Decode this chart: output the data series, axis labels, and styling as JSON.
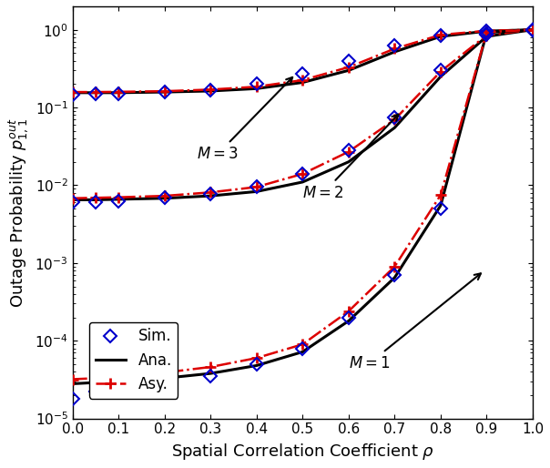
{
  "title": "",
  "xlabel": "Spatial Correlation Coefficient $\\rho$",
  "ylabel": "Outage Probability $p_{1,1}^{out}$",
  "xlim": [
    0,
    1.0
  ],
  "rho": [
    0.0,
    0.05,
    0.1,
    0.2,
    0.3,
    0.4,
    0.5,
    0.6,
    0.7,
    0.8,
    0.9,
    1.0
  ],
  "M3_ana": [
    0.155,
    0.155,
    0.155,
    0.158,
    0.163,
    0.175,
    0.21,
    0.3,
    0.52,
    0.82,
    0.96,
    1.0
  ],
  "M3_asy": [
    0.158,
    0.158,
    0.159,
    0.162,
    0.17,
    0.185,
    0.225,
    0.33,
    0.57,
    0.86,
    0.97,
    1.0
  ],
  "M3_sim": [
    0.147,
    0.15,
    0.152,
    0.158,
    0.168,
    0.2,
    0.27,
    0.4,
    0.62,
    0.85,
    0.97,
    1.0
  ],
  "M2_ana": [
    0.0065,
    0.0065,
    0.0066,
    0.0068,
    0.0073,
    0.0083,
    0.011,
    0.02,
    0.055,
    0.25,
    0.82,
    1.0
  ],
  "M2_asy": [
    0.0068,
    0.0069,
    0.007,
    0.0073,
    0.0081,
    0.0095,
    0.014,
    0.027,
    0.07,
    0.29,
    0.85,
    1.0
  ],
  "M2_sim": [
    0.006,
    0.006,
    0.0063,
    0.007,
    0.0078,
    0.0095,
    0.014,
    0.028,
    0.075,
    0.3,
    0.86,
    1.0
  ],
  "M1_ana": [
    2.8e-05,
    2.9e-05,
    3e-05,
    3.3e-05,
    3.8e-05,
    4.8e-05,
    7.2e-05,
    0.00018,
    0.00065,
    0.0055,
    0.92,
    1.0
  ],
  "M1_asy": [
    3.2e-05,
    3.3e-05,
    3.5e-05,
    3.9e-05,
    4.6e-05,
    6e-05,
    9e-05,
    0.00024,
    0.0009,
    0.0075,
    0.93,
    1.0
  ],
  "M1_sim": [
    1.8e-05,
    2.2e-05,
    2.5e-05,
    3e-05,
    3.5e-05,
    5e-05,
    8e-05,
    0.0002,
    0.0007,
    0.005,
    0.9,
    1.0
  ],
  "ana_color": "#000000",
  "asy_color": "#dd0000",
  "sim_color": "#0000cc",
  "background_color": "#ffffff",
  "xticks": [
    0.0,
    0.1,
    0.2,
    0.3,
    0.4,
    0.5,
    0.6,
    0.7,
    0.8,
    0.9,
    1.0
  ],
  "yticks": [
    1e-05,
    0.0001,
    0.001,
    0.01,
    0.1,
    1.0
  ],
  "ylim": [
    1e-05,
    2.0
  ]
}
